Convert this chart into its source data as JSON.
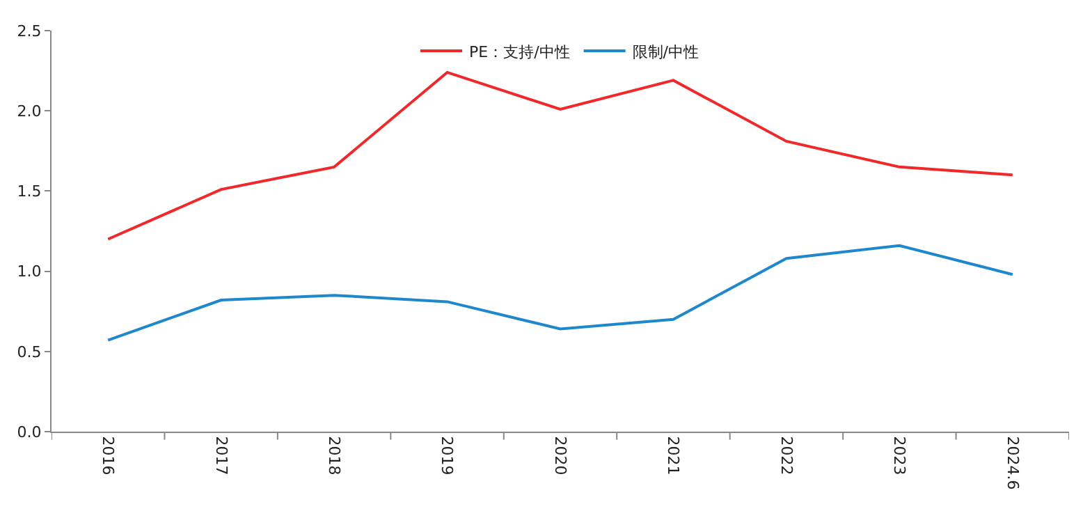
{
  "chart_data": {
    "type": "line",
    "categories": [
      "2016",
      "2017",
      "2018",
      "2019",
      "2020",
      "2021",
      "2022",
      "2023",
      "2024.6"
    ],
    "series": [
      {
        "name": "PE：支持/中性",
        "color": "#f0282a",
        "values": [
          1.2,
          1.51,
          1.65,
          2.24,
          2.01,
          2.19,
          1.81,
          1.65,
          1.6
        ]
      },
      {
        "name": "限制/中性",
        "color": "#1f88cc",
        "values": [
          0.57,
          0.82,
          0.85,
          0.81,
          0.64,
          0.7,
          1.08,
          1.16,
          0.98
        ]
      }
    ],
    "ylim": [
      0,
      2.5
    ],
    "yticks": [
      {
        "value": 0,
        "label": "0.0"
      },
      {
        "value": 0.5,
        "label": "0.5"
      },
      {
        "value": 1,
        "label": "1.0"
      },
      {
        "value": 1.5,
        "label": "1.5"
      },
      {
        "value": 2,
        "label": "2.0"
      },
      {
        "value": 2.5,
        "label": "2.5"
      }
    ],
    "legend": "top",
    "marker": "none",
    "line_style": "solid"
  }
}
